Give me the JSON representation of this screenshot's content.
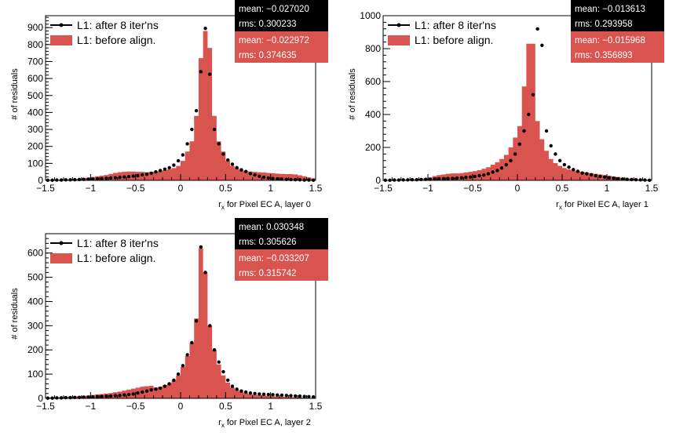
{
  "chart_data": [
    {
      "type": "bar",
      "xlabel_main": "r",
      "xlabel_sub": "x",
      "xlabel_rest": " for Pixel EC A, layer 0",
      "ylabel": "# of residuals",
      "xlim": [
        -1.5,
        1.5
      ],
      "ylim": [
        0,
        970
      ],
      "xticks": [
        "-1.5",
        "-1",
        "-0.5",
        "0",
        "0.5",
        "1",
        "1.5"
      ],
      "yticks": [
        "0",
        "100",
        "200",
        "300",
        "400",
        "500",
        "600",
        "700",
        "800",
        "900"
      ],
      "legend": [
        "L1: after 8 iter'ns",
        "L1: before align."
      ],
      "stats": [
        {
          "mean_label": "mean:",
          "mean": "-0.027020",
          "rms_label": "rms:",
          "rms": "0.300233",
          "color": "#000000"
        },
        {
          "mean_label": "mean:",
          "mean": "-0.022972",
          "rms_label": "rms:",
          "rms": "0.374635",
          "color": "#d9534f"
        }
      ],
      "series": [
        {
          "name": "L1: before align.",
          "style": "hist",
          "values": [
            2,
            3,
            3,
            4,
            5,
            6,
            8,
            10,
            13,
            16,
            20,
            24,
            28,
            32,
            38,
            44,
            48,
            50,
            52,
            52,
            50,
            50,
            48,
            50,
            52,
            55,
            60,
            65,
            72,
            85,
            115,
            170,
            230,
            380,
            720,
            880,
            780,
            380,
            230,
            170,
            115,
            85,
            72,
            60,
            55,
            52,
            50,
            48,
            46,
            44,
            42,
            40,
            38,
            37,
            37,
            35,
            30,
            24,
            18,
            12
          ]
        },
        {
          "name": "L1: after 8 iter'ns",
          "style": "points",
          "values": [
            1,
            1,
            2,
            2,
            3,
            3,
            4,
            5,
            6,
            7,
            8,
            9,
            10,
            12,
            14,
            16,
            18,
            20,
            22,
            25,
            28,
            32,
            36,
            42,
            50,
            58,
            66,
            74,
            90,
            115,
            150,
            215,
            300,
            410,
            640,
            895,
            625,
            300,
            215,
            155,
            120,
            95,
            75,
            62,
            52,
            40,
            32,
            24,
            18,
            14,
            11,
            9,
            7,
            6,
            5,
            4,
            3,
            2,
            2,
            1
          ]
        }
      ]
    },
    {
      "type": "bar",
      "xlabel_main": "r",
      "xlabel_sub": "x",
      "xlabel_rest": " for Pixel EC A, layer 1",
      "ylabel": "# of residuals",
      "xlim": [
        -1.5,
        1.5
      ],
      "ylim": [
        0,
        1000
      ],
      "xticks": [
        "-1.5",
        "-1",
        "-0.5",
        "0",
        "0.5",
        "1",
        "1.5"
      ],
      "yticks": [
        "0",
        "200",
        "400",
        "600",
        "800",
        "1000"
      ],
      "legend": [
        "L1: after 8 iter'ns",
        "L1: before align."
      ],
      "stats": [
        {
          "mean_label": "mean:",
          "mean": "-0.013613",
          "rms_label": "rms:",
          "rms": "0.293958",
          "color": "#000000"
        },
        {
          "mean_label": "mean:",
          "mean": "-0.015968",
          "rms_label": "rms:",
          "rms": "0.356893",
          "color": "#d9534f"
        }
      ],
      "series": [
        {
          "name": "L1: before align.",
          "style": "hist",
          "values": [
            2,
            2,
            3,
            3,
            4,
            5,
            6,
            8,
            10,
            12,
            18,
            26,
            32,
            36,
            40,
            42,
            42,
            44,
            48,
            52,
            56,
            62,
            70,
            80,
            95,
            110,
            130,
            155,
            200,
            260,
            330,
            570,
            830,
            830,
            360,
            250,
            180,
            130,
            105,
            88,
            75,
            66,
            60,
            56,
            52,
            48,
            44,
            40,
            36,
            32,
            28,
            24,
            20,
            16,
            12,
            10,
            8,
            6,
            4,
            3
          ]
        },
        {
          "name": "L1: after 8 iter'ns",
          "style": "points",
          "values": [
            1,
            1,
            2,
            2,
            3,
            3,
            4,
            4,
            5,
            6,
            7,
            8,
            9,
            10,
            11,
            12,
            14,
            16,
            18,
            20,
            24,
            28,
            32,
            40,
            50,
            60,
            75,
            95,
            120,
            160,
            220,
            300,
            400,
            520,
            920,
            820,
            300,
            210,
            160,
            120,
            95,
            80,
            65,
            55,
            45,
            40,
            34,
            28,
            24,
            20,
            16,
            13,
            10,
            8,
            6,
            5,
            4,
            3,
            2,
            1
          ]
        }
      ]
    },
    {
      "type": "bar",
      "xlabel_main": "r",
      "xlabel_sub": "x",
      "xlabel_rest": " for Pixel EC A, layer 2",
      "ylabel": "# of residuals",
      "xlim": [
        -1.5,
        1.5
      ],
      "ylim": [
        0,
        680
      ],
      "xticks": [
        "-1.5",
        "-1",
        "-0.5",
        "0",
        "0.5",
        "1",
        "1.5"
      ],
      "yticks": [
        "0",
        "100",
        "200",
        "300",
        "400",
        "500",
        "600"
      ],
      "legend": [
        "L1: after 8 iter'ns",
        "L1: before align."
      ],
      "stats": [
        {
          "mean_label": "mean:",
          "mean": "0.030348",
          "rms_label": "rms:",
          "rms": "0.305626",
          "color": "#000000"
        },
        {
          "mean_label": "mean:",
          "mean": "-0.033207",
          "rms_label": "rms:",
          "rms": "0.315742",
          "color": "#d9534f"
        }
      ],
      "series": [
        {
          "name": "L1: before align.",
          "style": "hist",
          "values": [
            3,
            4,
            4,
            5,
            6,
            7,
            8,
            9,
            10,
            12,
            14,
            16,
            18,
            20,
            22,
            25,
            28,
            32,
            36,
            40,
            44,
            48,
            50,
            52,
            45,
            48,
            55,
            62,
            75,
            95,
            130,
            175,
            230,
            330,
            620,
            520,
            300,
            200,
            140,
            95,
            65,
            45,
            35,
            28,
            22,
            18,
            15,
            13,
            12,
            10,
            9,
            8,
            7,
            6,
            5,
            4,
            4,
            3,
            2,
            2
          ]
        },
        {
          "name": "L1: after 8 iter'ns",
          "style": "points",
          "values": [
            1,
            1,
            2,
            2,
            3,
            3,
            4,
            4,
            5,
            5,
            6,
            7,
            8,
            9,
            10,
            11,
            12,
            14,
            16,
            18,
            22,
            26,
            30,
            35,
            38,
            42,
            50,
            60,
            75,
            100,
            135,
            180,
            230,
            320,
            625,
            520,
            300,
            200,
            150,
            110,
            75,
            50,
            38,
            30,
            26,
            22,
            20,
            18,
            17,
            16,
            15,
            14,
            13,
            12,
            11,
            10,
            9,
            8,
            7,
            6
          ]
        }
      ]
    }
  ]
}
